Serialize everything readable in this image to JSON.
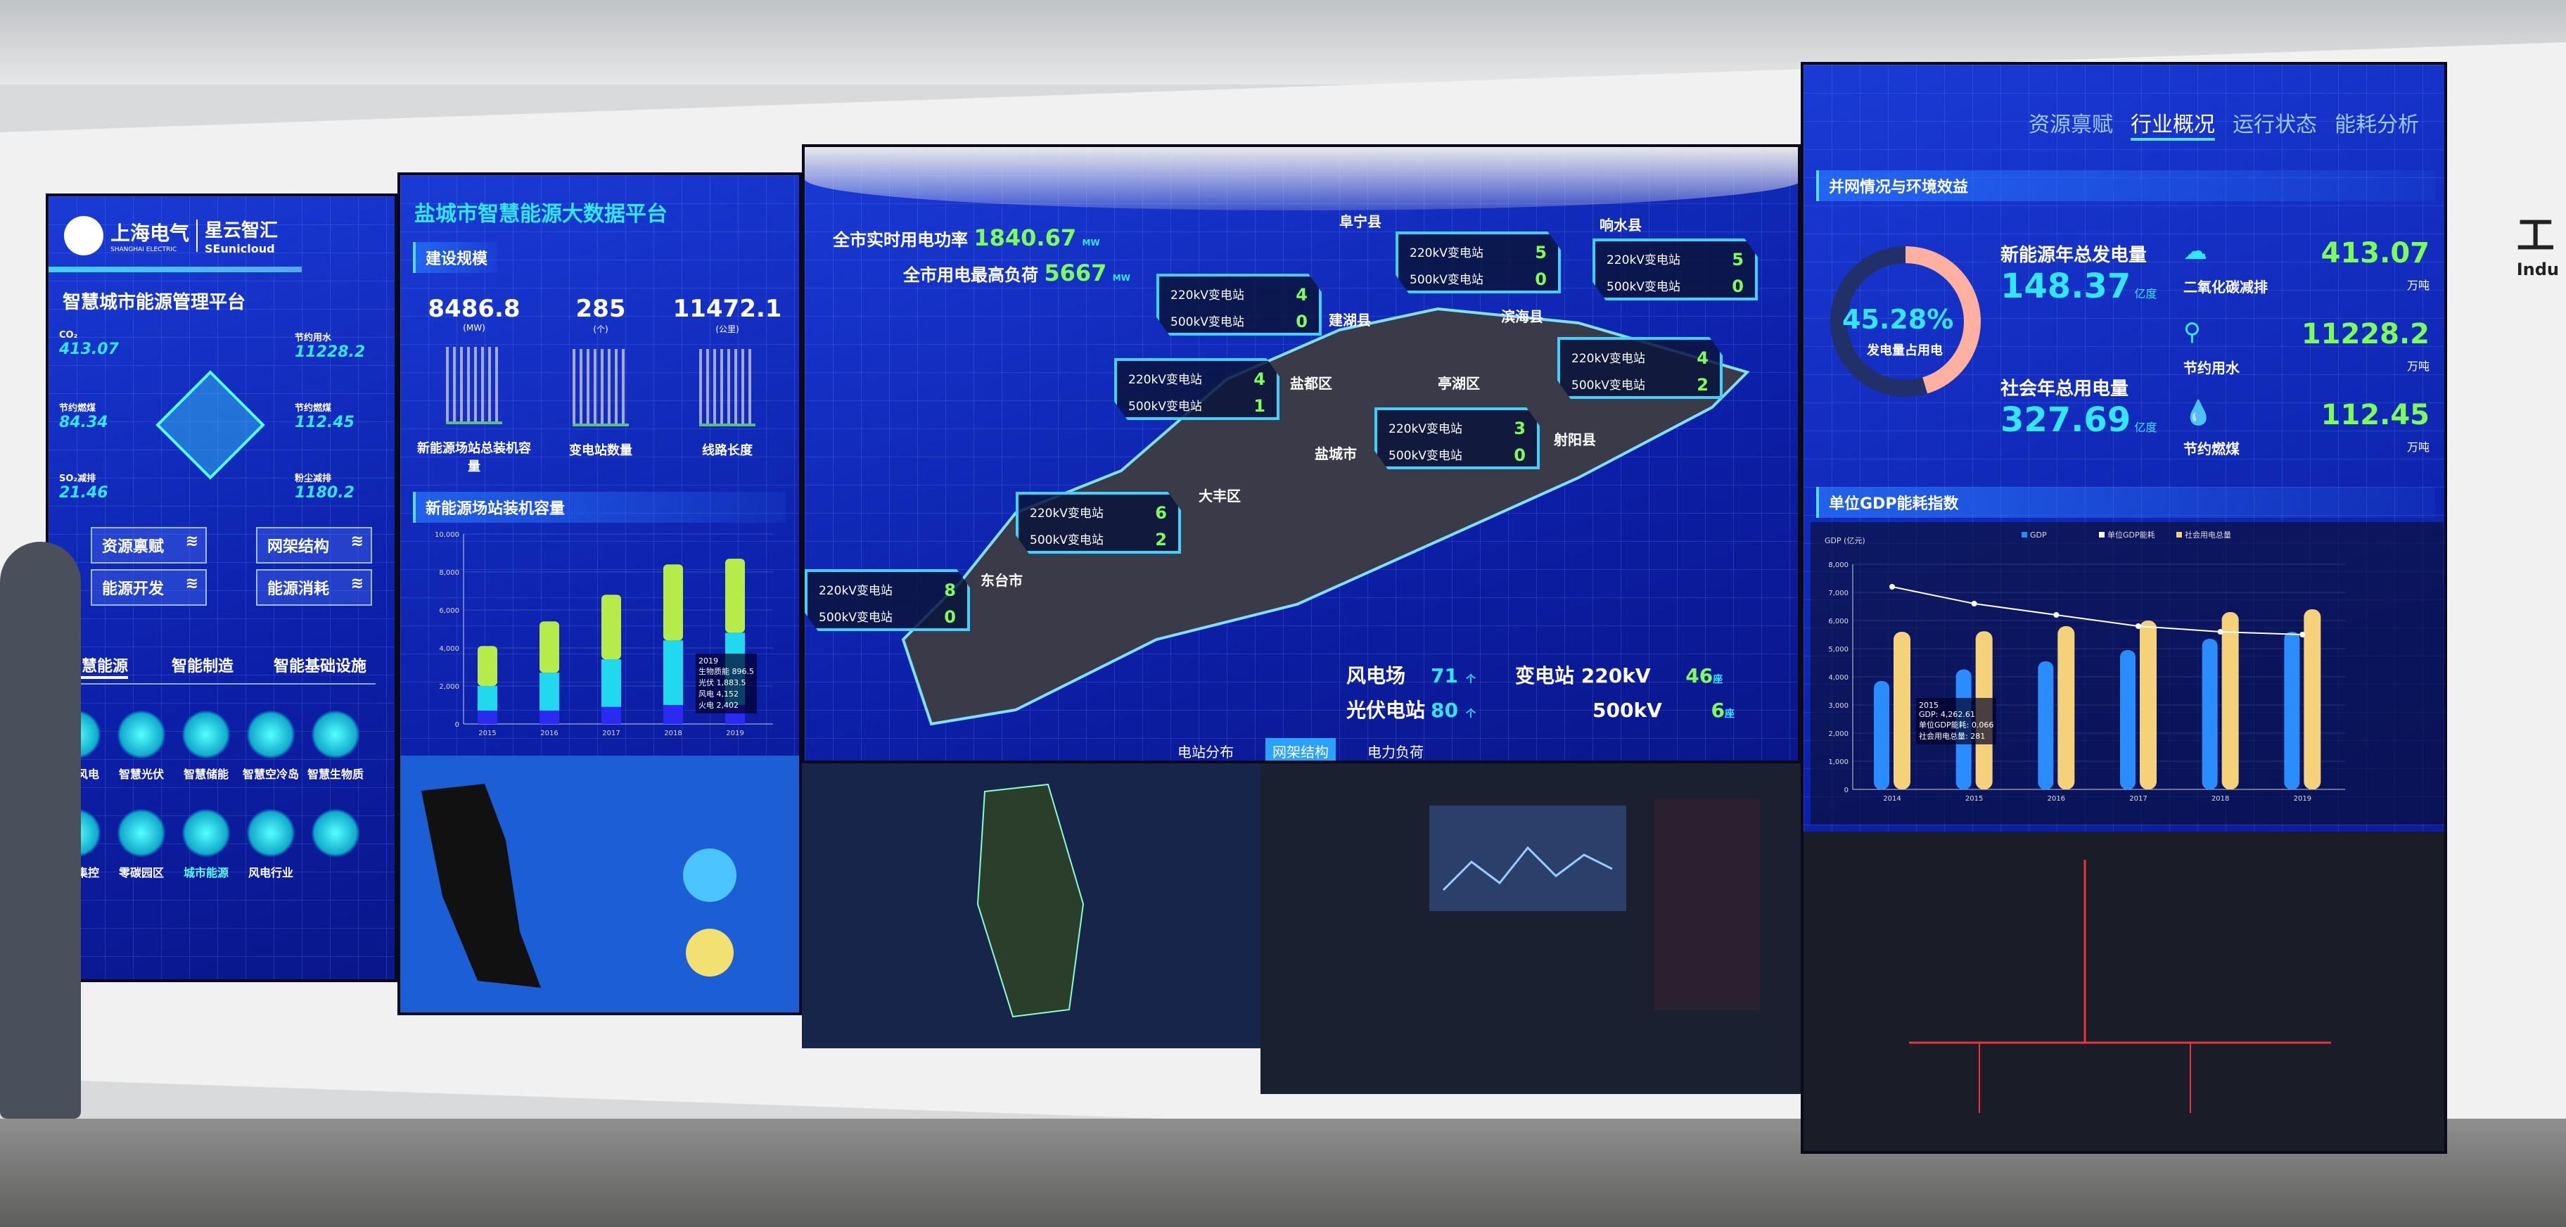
{
  "left_panel": {
    "logo_cn": "上海电气",
    "logo_en": "SHANGHAI ELECTRIC",
    "brand_cn": "星云智汇",
    "brand_en": "SEunicloud",
    "title": "智慧城市能源管理平台",
    "metrics": [
      {
        "label": "CO₂",
        "value": "413.07"
      },
      {
        "label": "节约用水",
        "value": "11228.2"
      },
      {
        "label": "节约燃煤",
        "value": "84.34"
      },
      {
        "label": "节约燃煤",
        "value": "112.45"
      },
      {
        "label": "SO₂减排",
        "value": "21.46"
      },
      {
        "label": "粉尘减排",
        "value": "1180.2"
      }
    ],
    "buttons": [
      "资源禀赋",
      "网架结构",
      "能源开发",
      "能源消耗"
    ],
    "tabs": [
      "智慧能源",
      "智能制造",
      "智能基础设施"
    ],
    "row1": [
      "智慧风电",
      "智慧光伏",
      "智慧储能",
      "智慧空冷岛",
      "智慧生物质"
    ],
    "row2": [
      "区域集控",
      "零碳园区",
      "城市能源",
      "风电行业",
      ""
    ]
  },
  "panel2": {
    "title": "盐城市智慧能源大数据平台",
    "section1": "建设规模",
    "stats": [
      {
        "value": "8486.8",
        "unit": "(MW)",
        "label": "新能源场站总装机容量"
      },
      {
        "value": "285",
        "unit": "(个)",
        "label": "变电站数量"
      },
      {
        "value": "11472.1",
        "unit": "(公里)",
        "label": "线路长度"
      }
    ],
    "section2": "新能源场站装机容量",
    "tooltip": [
      "2019",
      "生物质能 896.5",
      "光伏 1,883.5",
      "风电 4,152",
      "火电 2,402"
    ]
  },
  "map_panel": {
    "realtime_power_label": "全市实时用电功率",
    "realtime_power_value": "1840.67",
    "realtime_power_unit": "MW",
    "peak_load_label": "全市用电最高负荷",
    "peak_load_value": "5667",
    "peak_load_unit": "MW",
    "row1_label": "220kV变电站",
    "row2_label": "500kV变电站",
    "stations": [
      {
        "a": "4",
        "b": "0"
      },
      {
        "a": "5",
        "b": "0"
      },
      {
        "a": "5",
        "b": "0"
      },
      {
        "a": "4",
        "b": "1"
      },
      {
        "a": "4",
        "b": "2"
      },
      {
        "a": "3",
        "b": "0"
      },
      {
        "a": "6",
        "b": "2"
      },
      {
        "a": "8",
        "b": "0"
      }
    ],
    "places": [
      "阜宁县",
      "响水县",
      "建湖县",
      "滨海县",
      "盐都区",
      "亭湖区",
      "盐城市",
      "射阳县",
      "大丰区",
      "东台市"
    ],
    "summary": {
      "wind_label": "风电场",
      "wind_value": "71",
      "wind_unit": "个",
      "pv_label": "光伏电站",
      "pv_value": "80",
      "pv_unit": "个",
      "sub_label": "变电站",
      "kv220": "220kV",
      "kv220_value": "46",
      "kv500": "500kV",
      "kv500_value": "6",
      "sub_unit": "座"
    },
    "tabs": [
      "电站分布",
      "网架结构",
      "电力负荷"
    ]
  },
  "right_panel": {
    "nav": [
      "资源禀赋",
      "行业概况",
      "运行状态",
      "能耗分析"
    ],
    "active_nav": 1,
    "section1": "并网情况与环境效益",
    "gauge_value": "45.28%",
    "gauge_fraction": 0.4528,
    "gauge_label": "发电量占用电",
    "gen_label": "新能源年总发电量",
    "gen_value": "148.37",
    "gen_unit": "亿度",
    "use_label": "社会年总用电量",
    "use_value": "327.69",
    "use_unit": "亿度",
    "env": [
      {
        "label": "二氧化碳减排",
        "value": "413.07",
        "unit": "万吨",
        "icon": "co2-cloud-icon"
      },
      {
        "label": "节约用水",
        "value": "11228.2",
        "unit": "万吨",
        "icon": "water-tap-icon"
      },
      {
        "label": "节约燃煤",
        "value": "112.45",
        "unit": "万吨",
        "icon": "flame-icon"
      }
    ],
    "section2": "单位GDP能耗指数",
    "gdp_tooltip": [
      "2015",
      "GDP: 4,262.61",
      "单位GDP能耗: 0.066",
      "社会用电总量: 281"
    ]
  },
  "colors": {
    "screen": "#1230c8",
    "cyan": "#33e6ff",
    "green": "#7dff5a",
    "yellow": "#f5d27a",
    "wall": "#f1f1f2"
  },
  "chart_data": [
    {
      "type": "bar",
      "stacked": true,
      "categories": [
        "2015",
        "2016",
        "2017",
        "2018",
        "2019"
      ],
      "ylim": [
        0,
        10000
      ],
      "yticks": [
        "0",
        "2,000",
        "4,000",
        "6,000",
        "8,000",
        "10,000"
      ],
      "series": [
        {
          "color": "#2a2af0",
          "values": [
            700,
            700,
            900,
            1000,
            1000
          ]
        },
        {
          "color": "#22d8ee",
          "values": [
            1300,
            2000,
            2500,
            3400,
            3800
          ]
        },
        {
          "color": "#b6ec4a",
          "values": [
            2100,
            2700,
            3400,
            4000,
            3900
          ]
        }
      ]
    },
    {
      "type": "bar",
      "categories": [
        "2014",
        "2015",
        "2016",
        "2017",
        "2018",
        "2019"
      ],
      "ylim": [
        0,
        8000
      ],
      "yticks": [
        "0",
        "1,000",
        "2,000",
        "3,000",
        "4,000",
        "5,000",
        "6,000",
        "7,000",
        "8,000"
      ],
      "ylabel": "GDP (亿元)",
      "legend": [
        "GDP",
        "单位GDP能耗",
        "社会用电总量"
      ],
      "series": [
        {
          "name": "GDP",
          "color": "#2a8cff",
          "values": [
            3850,
            4262,
            4550,
            4950,
            5350,
            5600
          ]
        },
        {
          "name": "社会用电总量",
          "color": "#f5d27a",
          "axis": "right",
          "ylim": [
            0,
            400
          ],
          "values": [
            280,
            281,
            290,
            300,
            315,
            320
          ]
        },
        {
          "name": "单位GDP能耗",
          "type": "line",
          "color": "#ffffff",
          "axis": "right2",
          "ylim": [
            0,
            0.08
          ],
          "values": [
            0.072,
            0.066,
            0.062,
            0.058,
            0.056,
            0.055
          ]
        }
      ]
    }
  ]
}
